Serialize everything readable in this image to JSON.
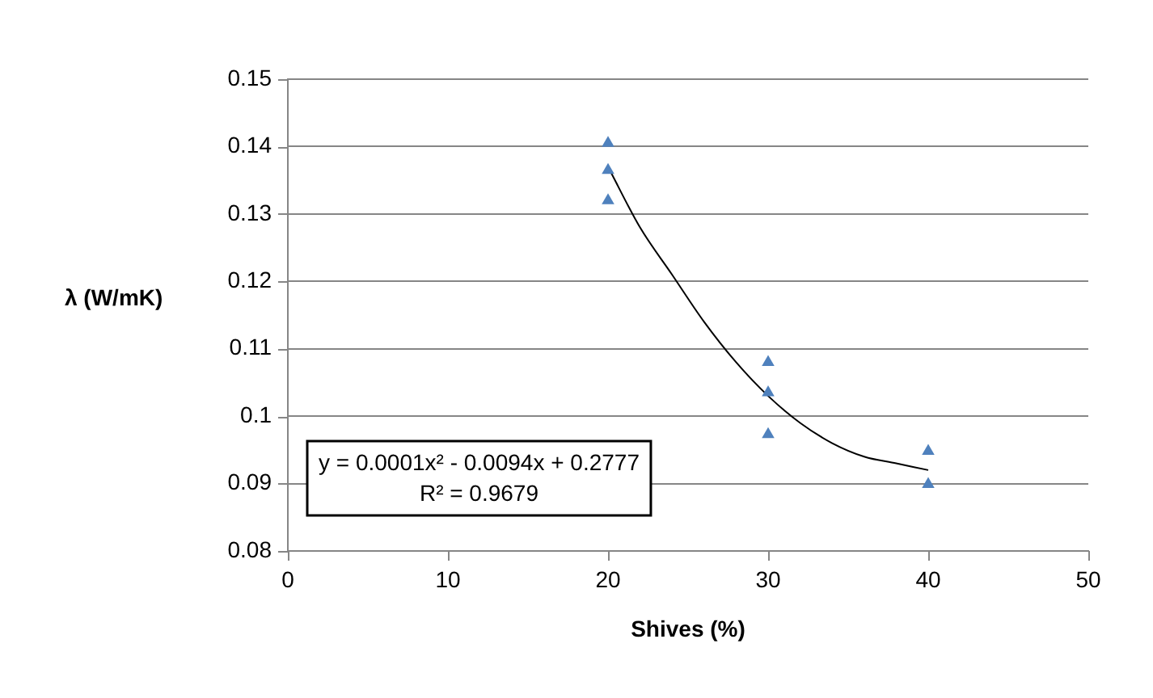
{
  "chart_data": {
    "type": "scatter",
    "xlabel": "Shives (%)",
    "ylabel": "λ (W/mK)",
    "series": [
      {
        "color": "#4f81bd",
        "marker": "triangle",
        "x": [
          20,
          20,
          20,
          30,
          30,
          30,
          40,
          40
        ],
        "values": [
          0.1405,
          0.1365,
          0.132,
          0.108,
          0.1035,
          0.0973,
          0.0948,
          0.0899
        ]
      },
      {
        "type": "line",
        "color": "#000000",
        "marker": "none",
        "line_style": "solid",
        "x": [
          20,
          22,
          24,
          26,
          28,
          30,
          32,
          34,
          36,
          38,
          40
        ],
        "values": [
          0.137,
          0.128,
          0.121,
          0.114,
          0.108,
          0.103,
          0.099,
          0.096,
          0.094,
          0.093,
          0.092
        ]
      }
    ],
    "xlim": [
      0,
      50
    ],
    "xticks": [
      0,
      10,
      20,
      30,
      40,
      50
    ],
    "ylim": [
      0.08,
      0.15
    ],
    "yticks": [
      0.08,
      0.09,
      0.1,
      0.11,
      0.12,
      0.13,
      0.14,
      0.15
    ],
    "grid": "y",
    "legend": false,
    "annotations": [
      "y = 0.0001x² - 0.0094x + 0.2777",
      "R² = 0.9679"
    ]
  }
}
